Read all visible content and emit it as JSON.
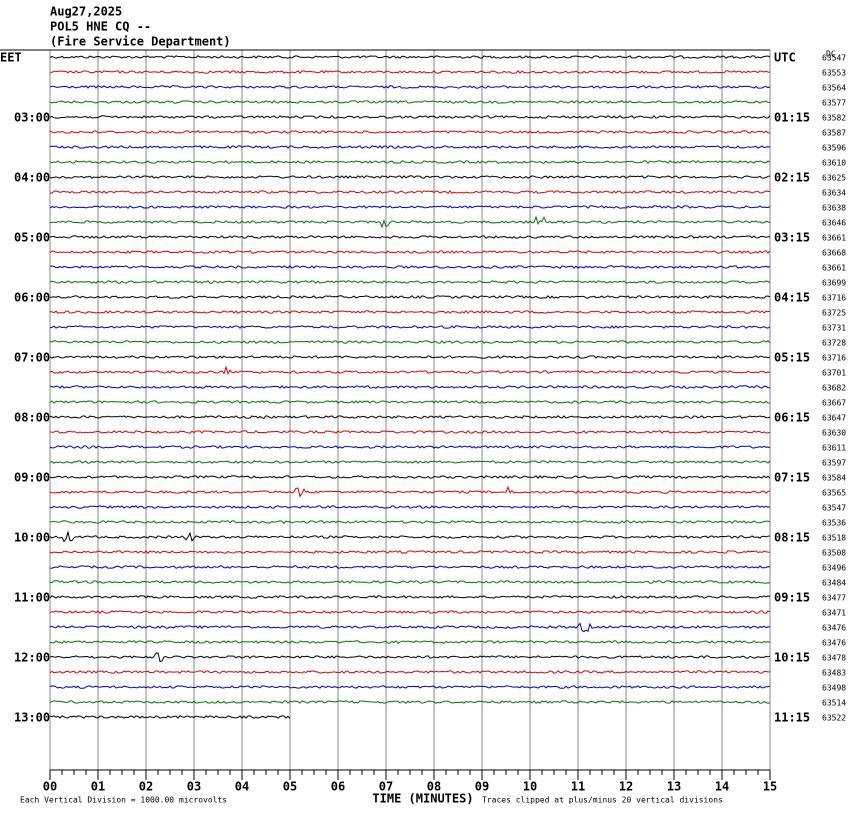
{
  "header": {
    "date": "Aug27,2025",
    "station": "POL5 HNE CQ --",
    "agency": "(Fire Service Department)"
  },
  "left_labels": [
    "EET",
    "03:00",
    "04:00",
    "05:00",
    "06:00",
    "07:00",
    "08:00",
    "09:00",
    "10:00",
    "11:00",
    "12:00",
    "13:00"
  ],
  "right_labels": [
    "UTC",
    "01:15",
    "02:15",
    "03:15",
    "04:15",
    "05:15",
    "06:15",
    "07:15",
    "08:15",
    "09:15",
    "10:15",
    "11:15"
  ],
  "dc_label": "DC",
  "counts": [
    "63547",
    "63553",
    "63564",
    "63577",
    "63582",
    "63587",
    "63596",
    "63610",
    "63625",
    "63634",
    "63638",
    "63646",
    "63661",
    "63668",
    "63661",
    "63699",
    "63716",
    "63725",
    "63731",
    "63728",
    "63716",
    "63701",
    "63682",
    "63667",
    "63647",
    "63630",
    "63611",
    "63597",
    "63584",
    "63565",
    "63547",
    "63536",
    "63518",
    "63508",
    "63496",
    "63484",
    "63477",
    "63471",
    "63476",
    "63476",
    "63478",
    "63483",
    "63498",
    "63514",
    "63522"
  ],
  "x_labels": [
    "00",
    "01",
    "02",
    "03",
    "04",
    "05",
    "06",
    "07",
    "08",
    "09",
    "10",
    "11",
    "12",
    "13",
    "14",
    "15"
  ],
  "footer": {
    "scale": "Each Vertical Division = 1000.00 microvolts",
    "axis_title": "TIME (MINUTES)",
    "clip": "Traces clipped at plus/minus 20 vertical divisions"
  }
}
